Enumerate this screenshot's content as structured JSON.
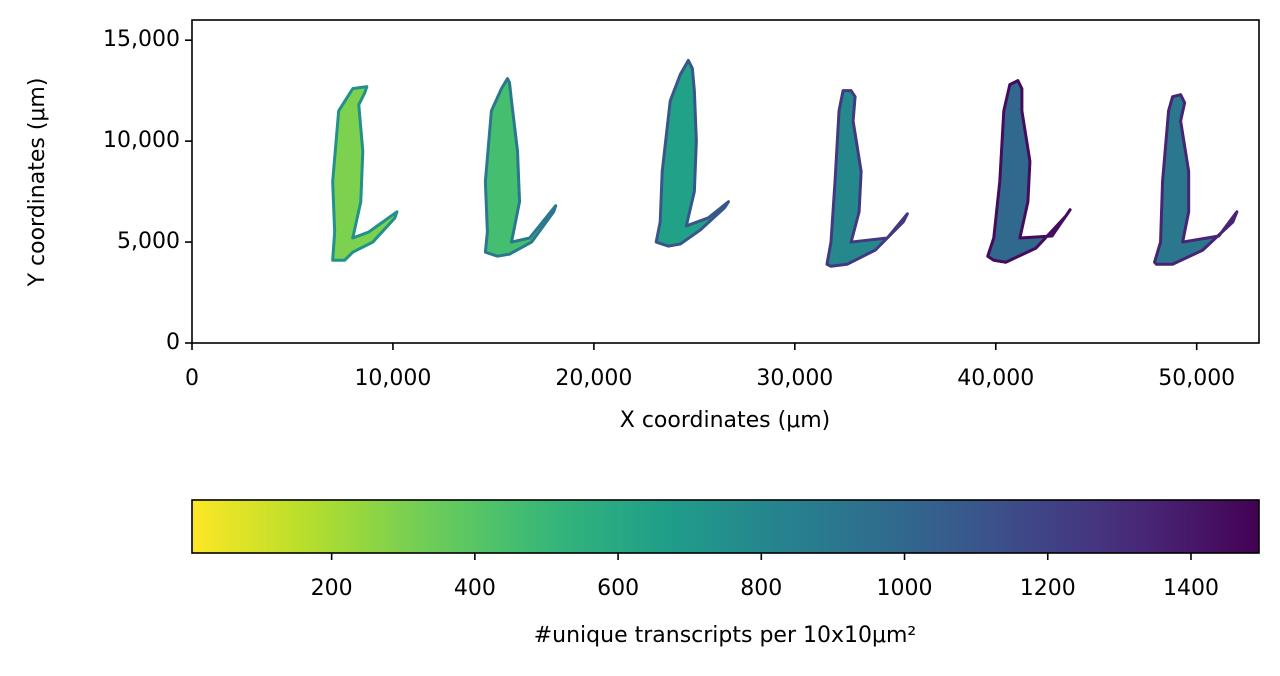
{
  "chart_data": {
    "type": "spatial",
    "xlabel": "X coordinates (μm)",
    "ylabel": "Y coordinates (μm)",
    "xlim": [
      0,
      53100
    ],
    "ylim": [
      0,
      16000
    ],
    "xticks": [
      0,
      {
        "value": 10000,
        "label": "10,000"
      },
      {
        "value": 20000,
        "label": "20,000"
      },
      {
        "value": 30000,
        "label": "30,000"
      },
      {
        "value": 40000,
        "label": "40,000"
      },
      {
        "value": 50000,
        "label": "50,000"
      }
    ],
    "yticks": [
      0,
      {
        "value": 5000,
        "label": "5,000"
      },
      {
        "value": 10000,
        "label": "10,000"
      },
      {
        "value": 15000,
        "label": "15,000"
      }
    ],
    "colormap": "viridis_r",
    "colorbar": {
      "label": "#unique transcripts per 10x10μm²",
      "clim": [
        5,
        1495
      ],
      "ticks": [
        200,
        400,
        600,
        800,
        1000,
        1200,
        1400
      ]
    },
    "sections": [
      {
        "value": 300,
        "x": [
          7000,
          7100,
          7000,
          7300,
          8000,
          8700,
          8600,
          8300,
          8500,
          8400,
          8000,
          8800,
          10200,
          10100,
          9000,
          8000,
          7600
        ],
        "y": [
          4100,
          5500,
          8000,
          11500,
          12600,
          12700,
          12400,
          11800,
          9500,
          7000,
          5200,
          5500,
          6500,
          6200,
          5000,
          4500,
          4100
        ]
      },
      {
        "value": 450,
        "x": [
          14600,
          14700,
          14600,
          14900,
          15400,
          15700,
          15800,
          15900,
          16200,
          16300,
          15900,
          16800,
          18100,
          18000,
          16900,
          15800,
          15200
        ],
        "y": [
          4500,
          5500,
          8000,
          11500,
          12600,
          13100,
          12900,
          12000,
          9500,
          7000,
          5000,
          5200,
          6800,
          6500,
          5000,
          4400,
          4300
        ]
      },
      {
        "value": 650,
        "x": [
          23100,
          23300,
          23400,
          23800,
          24300,
          24700,
          24900,
          25000,
          25100,
          25000,
          24600,
          25700,
          26700,
          26500,
          25300,
          24300,
          23700
        ],
        "y": [
          5000,
          6000,
          8500,
          12000,
          13300,
          14000,
          13600,
          12500,
          10000,
          7500,
          5800,
          6200,
          7000,
          6700,
          5600,
          4900,
          4800
        ]
      },
      {
        "value": 800,
        "x": [
          31600,
          31800,
          32000,
          32200,
          32400,
          32800,
          33000,
          32900,
          33300,
          33200,
          32800,
          34600,
          35600,
          35400,
          34000,
          32600,
          31800
        ],
        "y": [
          3900,
          5000,
          8000,
          11500,
          12500,
          12500,
          12200,
          11000,
          8500,
          6500,
          5000,
          5200,
          6400,
          6000,
          4600,
          3900,
          3800
        ]
      },
      {
        "value": 1000,
        "x": [
          39600,
          39900,
          40200,
          40400,
          40700,
          41100,
          41300,
          41300,
          41700,
          41600,
          41200,
          42800,
          43700,
          43500,
          42000,
          40500,
          39900
        ],
        "y": [
          4300,
          5200,
          8000,
          11500,
          12800,
          13000,
          12600,
          11500,
          9000,
          7000,
          5200,
          5300,
          6600,
          6300,
          4700,
          4000,
          4100
        ]
      },
      {
        "value": 900,
        "x": [
          47900,
          48200,
          48300,
          48600,
          48800,
          49200,
          49400,
          49200,
          49600,
          49600,
          49300,
          51100,
          52000,
          51800,
          50300,
          48800,
          48000
        ],
        "y": [
          4000,
          5000,
          8000,
          11500,
          12200,
          12300,
          11900,
          11000,
          8500,
          6500,
          5000,
          5300,
          6500,
          6000,
          4600,
          3900,
          3900
        ]
      }
    ]
  }
}
